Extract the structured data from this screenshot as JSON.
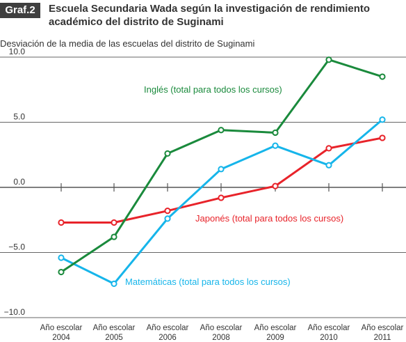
{
  "figure": {
    "badge": "Graf.2",
    "title": "Escuela Secundaria Wada según la investigación de rendimiento académico del distrito de Suginami"
  },
  "chart_data": {
    "type": "line",
    "title": "Escuela Secundaria Wada según la investigación de rendimiento académico del distrito de Suginami",
    "ylabel": "Desviación de la media de las escuelas del distrito de Suginami",
    "ylim": [
      -10,
      10
    ],
    "yticks": [
      "10.0",
      "5.0",
      "0.0",
      "−5.0",
      "−10.0"
    ],
    "categories": [
      [
        "Año escolar",
        "2004"
      ],
      [
        "Año escolar",
        "2005"
      ],
      [
        "Año escolar",
        "2006"
      ],
      [
        "Año escolar",
        "2008"
      ],
      [
        "Año escolar",
        "2009"
      ],
      [
        "Año escolar",
        "2010"
      ],
      [
        "Año escolar",
        "2011"
      ]
    ],
    "series": [
      {
        "name": "Inglés (total para todos los cursos)",
        "color": "#1a8a3c",
        "values": [
          -6.5,
          -3.8,
          2.6,
          4.4,
          4.2,
          9.8,
          8.5
        ]
      },
      {
        "name": "Japonés (total para todos los cursos)",
        "color": "#e8232a",
        "values": [
          -2.7,
          -2.7,
          -1.8,
          -0.8,
          0.1,
          3.0,
          3.8
        ]
      },
      {
        "name": "Matemáticas (total para todos los cursos)",
        "color": "#16b5ea",
        "values": [
          -5.4,
          -7.4,
          -2.4,
          1.4,
          3.2,
          1.7,
          5.2
        ]
      }
    ],
    "grid": true,
    "legend": "inline labels"
  }
}
